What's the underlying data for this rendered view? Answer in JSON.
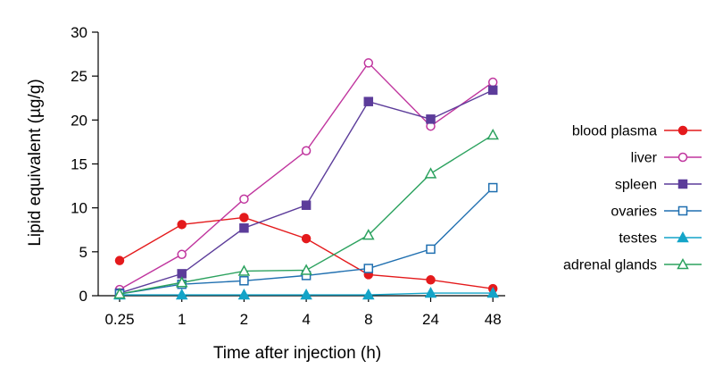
{
  "chart_data": {
    "type": "line",
    "title": "",
    "xlabel": "Time after injection (h)",
    "ylabel": "Lipid equivalent (µg/g)",
    "categories": [
      "0.25",
      "1",
      "2",
      "4",
      "8",
      "24",
      "48"
    ],
    "ylim": [
      0,
      30
    ],
    "yticks": [
      "0",
      "5",
      "10",
      "15",
      "20",
      "25",
      "30"
    ],
    "grid": false,
    "legend_position": "right",
    "series": [
      {
        "name": "blood plasma",
        "color": "#e41a1c",
        "marker": "filled-circle",
        "values": [
          4.0,
          8.1,
          8.9,
          6.5,
          2.4,
          1.8,
          0.8
        ]
      },
      {
        "name": "liver",
        "color": "#c0359e",
        "marker": "open-circle",
        "values": [
          0.7,
          4.7,
          11.0,
          16.5,
          26.5,
          19.3,
          24.3
        ]
      },
      {
        "name": "spleen",
        "color": "#5c3c9a",
        "marker": "filled-square",
        "values": [
          0.3,
          2.5,
          7.7,
          10.3,
          22.1,
          20.1,
          23.4
        ]
      },
      {
        "name": "ovaries",
        "color": "#1f6fb0",
        "marker": "open-square",
        "values": [
          0.2,
          1.3,
          1.7,
          2.3,
          3.1,
          5.3,
          12.3
        ]
      },
      {
        "name": "testes",
        "color": "#14a4c8",
        "marker": "filled-triangle",
        "values": [
          0.1,
          0.1,
          0.1,
          0.1,
          0.1,
          0.3,
          0.3
        ]
      },
      {
        "name": "adrenal glands",
        "color": "#2ca25f",
        "marker": "open-triangle",
        "values": [
          0.2,
          1.5,
          2.8,
          2.9,
          6.9,
          13.9,
          18.3
        ]
      }
    ]
  }
}
